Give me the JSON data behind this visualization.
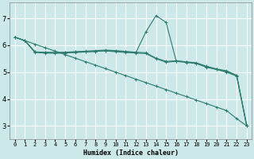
{
  "xlabel": "Humidex (Indice chaleur)",
  "bg_color": "#cce8e8",
  "grid_color": "#ffffff",
  "line_color": "#2d7a6e",
  "xlim": [
    -0.5,
    23.5
  ],
  "ylim": [
    2.5,
    7.6
  ],
  "yticks": [
    3,
    4,
    5,
    6,
    7
  ],
  "xticks": [
    0,
    1,
    2,
    3,
    4,
    5,
    6,
    7,
    8,
    9,
    10,
    11,
    12,
    13,
    14,
    15,
    16,
    17,
    18,
    19,
    20,
    21,
    22,
    23
  ],
  "series": [
    {
      "x": [
        0,
        1,
        2,
        3,
        4,
        5,
        6,
        7,
        8,
        9,
        10,
        11,
        12,
        13,
        14,
        15,
        16,
        17,
        18,
        19,
        20,
        21,
        22,
        23
      ],
      "y": [
        6.3,
        6.17,
        6.04,
        5.91,
        5.78,
        5.65,
        5.52,
        5.39,
        5.26,
        5.13,
        5.0,
        4.87,
        4.74,
        4.61,
        4.48,
        4.35,
        4.22,
        4.09,
        3.96,
        3.83,
        3.7,
        3.57,
        3.27,
        3.0
      ]
    },
    {
      "x": [
        0,
        1,
        2,
        3,
        4,
        5,
        6,
        7,
        8,
        9,
        10,
        11,
        12,
        13,
        14,
        15,
        16,
        17,
        18,
        19,
        20,
        21,
        22,
        23
      ],
      "y": [
        6.3,
        6.17,
        5.75,
        5.73,
        5.72,
        5.73,
        5.75,
        5.76,
        5.77,
        5.8,
        5.78,
        5.76,
        5.72,
        6.5,
        7.1,
        6.85,
        5.42,
        5.38,
        5.32,
        5.2,
        5.1,
        5.0,
        4.85,
        3.0
      ]
    },
    {
      "x": [
        0,
        1,
        2,
        3,
        4,
        5,
        6,
        7,
        8,
        9,
        10,
        11,
        12,
        13,
        14,
        15,
        16,
        17,
        18,
        19,
        20,
        21,
        22,
        23
      ],
      "y": [
        6.3,
        6.17,
        5.75,
        5.74,
        5.73,
        5.74,
        5.76,
        5.78,
        5.8,
        5.82,
        5.8,
        5.77,
        5.74,
        5.72,
        5.52,
        5.4,
        5.42,
        5.38,
        5.35,
        5.22,
        5.12,
        5.05,
        4.88,
        3.0
      ]
    },
    {
      "x": [
        0,
        1,
        2,
        3,
        4,
        5,
        6,
        7,
        8,
        9,
        10,
        11,
        12,
        13,
        14,
        15,
        16,
        17,
        18,
        19,
        20,
        21,
        22,
        23
      ],
      "y": [
        6.3,
        6.17,
        5.73,
        5.71,
        5.7,
        5.71,
        5.73,
        5.75,
        5.77,
        5.79,
        5.76,
        5.73,
        5.71,
        5.69,
        5.5,
        5.37,
        5.4,
        5.36,
        5.32,
        5.18,
        5.1,
        5.02,
        4.88,
        3.0
      ]
    }
  ]
}
